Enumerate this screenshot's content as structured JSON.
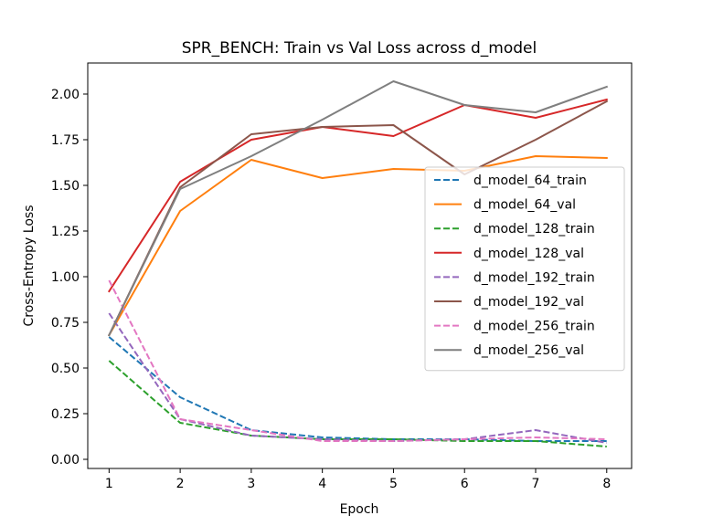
{
  "chart_data": {
    "type": "line",
    "title": "SPR_BENCH: Train vs Val Loss across d_model",
    "xlabel": "Epoch",
    "ylabel": "Cross-Entropy Loss",
    "x": [
      1,
      2,
      3,
      4,
      5,
      6,
      7,
      8
    ],
    "xlim": [
      0.7,
      8.35
    ],
    "ylim": [
      -0.05,
      2.17
    ],
    "xticks": [
      "1",
      "2",
      "3",
      "4",
      "5",
      "6",
      "7",
      "8"
    ],
    "yticks": [
      "0.00",
      "0.25",
      "0.50",
      "0.75",
      "1.00",
      "1.25",
      "1.50",
      "1.75",
      "2.00"
    ],
    "grid": false,
    "legend_position": "center-right",
    "series": [
      {
        "name": "d_model_64_train",
        "color": "#1f77b4",
        "dash": true,
        "values": [
          0.67,
          0.34,
          0.16,
          0.12,
          0.11,
          0.11,
          0.1,
          0.1
        ]
      },
      {
        "name": "d_model_64_val",
        "color": "#ff7f0e",
        "dash": false,
        "values": [
          0.68,
          1.36,
          1.64,
          1.54,
          1.59,
          1.58,
          1.66,
          1.65
        ]
      },
      {
        "name": "d_model_128_train",
        "color": "#2ca02c",
        "dash": true,
        "values": [
          0.54,
          0.2,
          0.13,
          0.11,
          0.11,
          0.1,
          0.1,
          0.07
        ]
      },
      {
        "name": "d_model_128_val",
        "color": "#d62728",
        "dash": false,
        "values": [
          0.92,
          1.52,
          1.75,
          1.82,
          1.77,
          1.94,
          1.87,
          1.97
        ]
      },
      {
        "name": "d_model_192_train",
        "color": "#9467bd",
        "dash": true,
        "values": [
          0.8,
          0.22,
          0.13,
          0.11,
          0.1,
          0.11,
          0.16,
          0.09
        ]
      },
      {
        "name": "d_model_192_val",
        "color": "#8c564b",
        "dash": false,
        "values": [
          0.68,
          1.49,
          1.78,
          1.82,
          1.83,
          1.56,
          1.75,
          1.96
        ]
      },
      {
        "name": "d_model_256_train",
        "color": "#e377c2",
        "dash": true,
        "values": [
          0.98,
          0.22,
          0.16,
          0.1,
          0.1,
          0.11,
          0.12,
          0.11
        ]
      },
      {
        "name": "d_model_256_val",
        "color": "#7f7f7f",
        "dash": false,
        "values": [
          0.68,
          1.48,
          1.66,
          1.86,
          2.07,
          1.94,
          1.9,
          2.04
        ]
      }
    ]
  }
}
